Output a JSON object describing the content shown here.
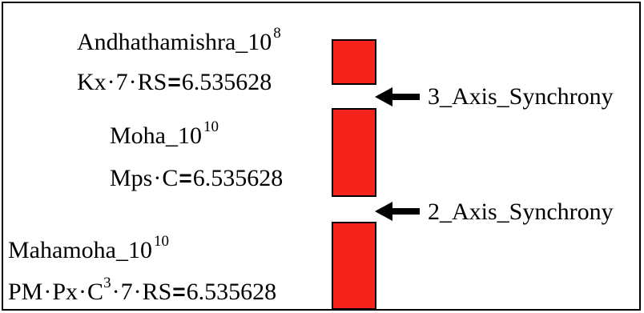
{
  "blocks": [
    {
      "name": "Andhathamishra",
      "exp_base": "_10",
      "exp": "8",
      "formula_parts": [
        "Kx",
        "7",
        "RS"
      ],
      "cube": "",
      "equals": "=",
      "value": "6.535628"
    },
    {
      "name": "Moha",
      "exp_base": "_10",
      "exp": "10",
      "formula_parts": [
        "Mps",
        "C"
      ],
      "equals": "=",
      "value": "6.535628"
    },
    {
      "name": "Mahamoha",
      "exp_base": "_10",
      "exp": "10",
      "formula_parts": [
        "PM",
        "Px",
        "C",
        "7",
        "RS"
      ],
      "c_exp": "3",
      "equals": "=",
      "value": "6.535628"
    }
  ],
  "arrows": [
    {
      "label": "3_Axis_Synchrony"
    },
    {
      "label": "2_Axis_Synchrony"
    }
  ],
  "dot_char": "·",
  "colors": {
    "bar_fill": "#f4231c",
    "stroke": "#000000"
  }
}
